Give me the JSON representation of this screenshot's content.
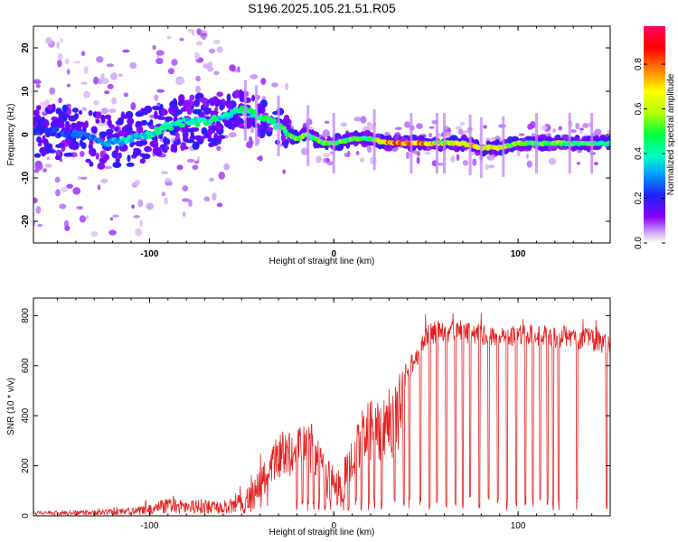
{
  "title": "S196.2025.105.21.51.R05",
  "chart_data": [
    {
      "type": "heatmap",
      "xlabel": "Height of straight line (km)",
      "ylabel": "Frequency (Hz)",
      "xlim": [
        -163,
        150
      ],
      "ylim": [
        -25,
        25
      ],
      "xticks": [
        -100,
        0,
        100
      ],
      "yticks": [
        -20,
        -10,
        0,
        10,
        20
      ],
      "colorbar": {
        "label": "Normalized spectral amplitude",
        "range": [
          0.0,
          0.97
        ],
        "ticks": [
          "0.0",
          "0.2",
          "0.4",
          "0.6",
          "0.8"
        ],
        "colors": [
          "#ffffff",
          "#c8a0f0",
          "#8800ff",
          "#2020ff",
          "#00c8ff",
          "#00ff80",
          "#a0ff00",
          "#ffff00",
          "#ff8000",
          "#ff0000",
          "#ff0060"
        ]
      },
      "ridge": {
        "x": [
          -160,
          -140,
          -120,
          -110,
          -100,
          -90,
          -80,
          -70,
          -60,
          -50,
          -45,
          -40,
          -35,
          -30,
          -25,
          -20,
          -15,
          -10,
          -5,
          0,
          10,
          20,
          30,
          40,
          50,
          60,
          70,
          80,
          90,
          100,
          110,
          120,
          130,
          140,
          150
        ],
        "y": [
          1,
          0,
          -2,
          -1,
          0,
          2,
          3,
          3,
          4,
          6,
          5,
          4,
          3,
          2,
          0,
          -1,
          0,
          -1,
          -2,
          -2,
          -1,
          -1,
          -2,
          -2,
          -2,
          -2,
          -2,
          -3,
          -3,
          -2,
          -2,
          -2,
          -2,
          -2,
          -2
        ],
        "amplitude": [
          0.25,
          0.3,
          0.35,
          0.4,
          0.45,
          0.5,
          0.45,
          0.5,
          0.45,
          0.5,
          0.55,
          0.5,
          0.5,
          0.55,
          0.5,
          0.6,
          0.6,
          0.55,
          0.6,
          0.6,
          0.6,
          0.55,
          0.9,
          0.9,
          0.85,
          0.65,
          0.8,
          0.75,
          0.7,
          0.6,
          0.55,
          0.6,
          0.55,
          0.55,
          0.5
        ]
      }
    },
    {
      "type": "line",
      "xlabel": "Height of straight line (km)",
      "ylabel": "SNR (10 * v/v)",
      "xlim": [
        -163,
        150
      ],
      "ylim": [
        0,
        870
      ],
      "xticks": [
        -100,
        0,
        100
      ],
      "yticks": [
        0,
        200,
        400,
        600,
        800
      ],
      "color": "#e62020",
      "envelope": {
        "x": [
          -163,
          -140,
          -120,
          -100,
          -90,
          -80,
          -70,
          -60,
          -50,
          -40,
          -35,
          -30,
          -25,
          -20,
          -15,
          -10,
          -5,
          0,
          5,
          10,
          15,
          20,
          25,
          30,
          35,
          40,
          45,
          50,
          55,
          60,
          70,
          80,
          90,
          100,
          110,
          120,
          130,
          140,
          150
        ],
        "y": [
          20,
          20,
          25,
          45,
          70,
          75,
          65,
          60,
          90,
          180,
          260,
          330,
          350,
          360,
          390,
          350,
          250,
          200,
          230,
          300,
          420,
          470,
          450,
          480,
          560,
          620,
          680,
          760,
          780,
          780,
          780,
          770,
          760,
          770,
          770,
          760,
          760,
          750,
          730
        ]
      },
      "dropouts_x": [
        -20,
        -17,
        -14,
        -11,
        -8,
        -5,
        -2,
        2,
        5,
        8,
        12,
        15,
        19,
        22,
        26,
        33,
        38,
        41,
        47,
        52,
        56,
        61,
        66,
        70,
        74,
        79,
        84,
        89,
        94,
        99,
        104,
        108,
        112,
        116,
        119,
        122,
        132,
        148
      ]
    }
  ]
}
